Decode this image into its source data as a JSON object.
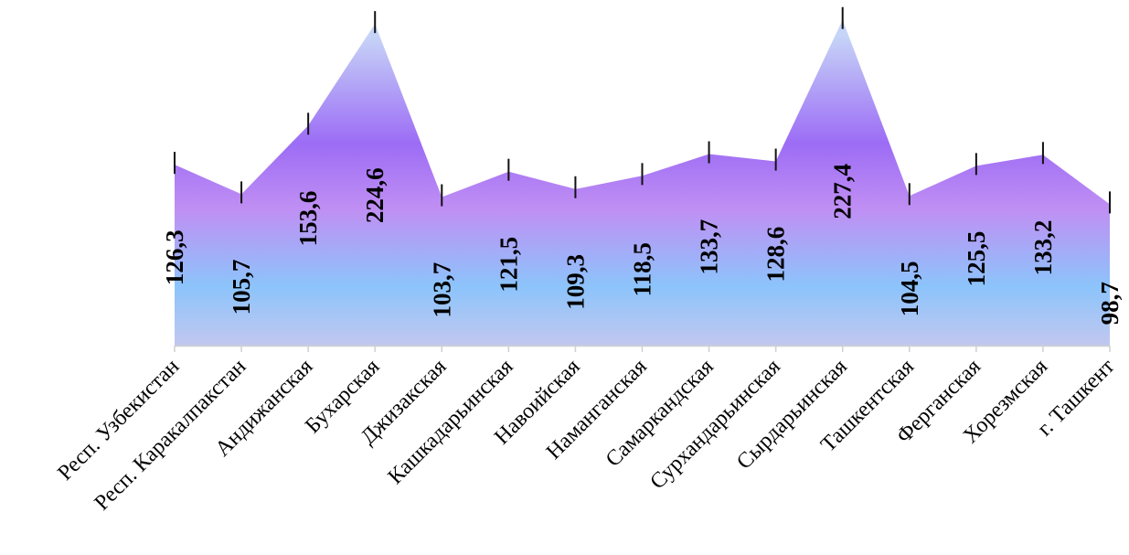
{
  "chart_data": {
    "type": "area",
    "categories": [
      "Респ. Узбекистан",
      "Респ. Каракалпакстан",
      "Андижанская",
      "Бухарская",
      "Джизакская",
      "Кашкадарьинская",
      "Навоийская",
      "Наманганская",
      "Самаркандская",
      "Сурхандарьинская",
      "Сырдарьинская",
      "Ташкентская",
      "Ферганская",
      "Хорезмская",
      "г. Ташкент"
    ],
    "values": [
      126.3,
      105.7,
      153.6,
      224.6,
      103.7,
      121.5,
      109.3,
      118.5,
      133.7,
      128.6,
      227.4,
      104.5,
      125.5,
      133.2,
      98.7
    ],
    "value_labels": [
      "126,3",
      "105,7",
      "153,6",
      "224,6",
      "103,7",
      "121,5",
      "109,3",
      "118,5",
      "133,7",
      "128,6",
      "227,4",
      "104,5",
      "125,5",
      "133,2",
      "98,7"
    ],
    "title": "",
    "xlabel": "",
    "ylabel": "",
    "ylim": [
      0,
      240
    ],
    "grid": false,
    "error_bars": true,
    "colors": {
      "top": "#c6d4f7",
      "mid": "#9c6cf5",
      "lower": "#c08ff3",
      "bottom": "#8cc4fb",
      "base": "#c2c7ef",
      "axis": "#d0d0d0"
    }
  }
}
